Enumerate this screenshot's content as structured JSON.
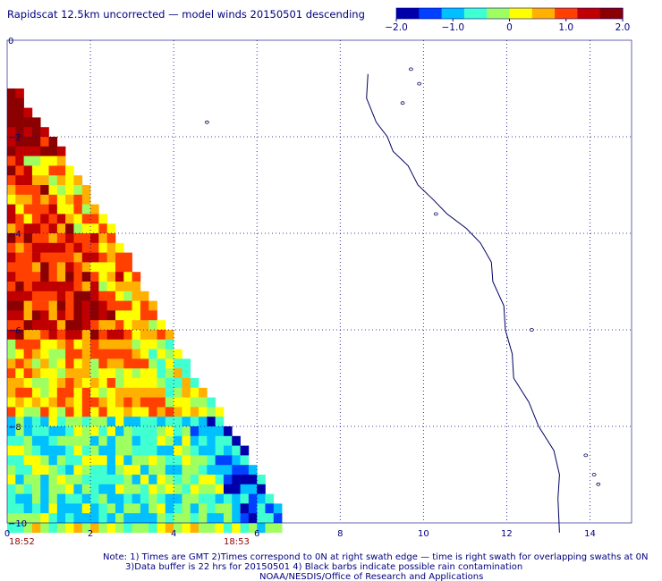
{
  "title": "Rapidscat 12.5km uncorrected — model winds 20150501 descending",
  "colorbar": {
    "min": -2.0,
    "max": 2.0,
    "tick_labels": [
      "−2.0",
      "−1.0",
      "0",
      "1.0",
      "2.0"
    ],
    "tick_values": [
      -2.0,
      -1.0,
      0,
      1.0,
      2.0
    ],
    "colors": [
      "#0000aa",
      "#0040ff",
      "#00c0ff",
      "#40ffd0",
      "#a0ff60",
      "#ffff00",
      "#ffb000",
      "#ff4000",
      "#c00000",
      "#8b0000"
    ]
  },
  "time_labels": [
    {
      "text": "18:52",
      "x": 0
    },
    {
      "text": "18:53",
      "x": 5
    }
  ],
  "notes": [
    "Note: 1) Times are GMT 2)Times correspond to 0N at right swath edge — time is right swath for overlapping swaths at 0N",
    "3)Data buffer is 22 hrs for 20150501 4) Black barbs indicate possible rain contamination",
    "NOAA/NESDIS/Office of Research and Applications"
  ],
  "chart_data": {
    "type": "heatmap",
    "title": "Rapidscat 12.5km uncorrected — model winds 20150501 descending",
    "xlim": [
      0,
      15
    ],
    "ylim": [
      -10,
      0
    ],
    "x_ticks": [
      0,
      2,
      4,
      6,
      8,
      10,
      12,
      14
    ],
    "x_tick_labels": [
      "0",
      "2",
      "4",
      "6",
      "8",
      "10",
      "12",
      "14"
    ],
    "y_ticks": [
      0,
      -2,
      -4,
      -6,
      -8,
      -10
    ],
    "y_tick_labels": [
      "0",
      "−2",
      "−4",
      "−6",
      "−8",
      "−10"
    ],
    "grid": true,
    "colorbar_range": [
      -2.0,
      2.0
    ],
    "cell_size": 0.2,
    "swath_edge": [
      [
        0.1,
        -1.0
      ],
      [
        0.7,
        -1.6
      ],
      [
        2.5,
        -4.0
      ],
      [
        4.2,
        -6.7
      ],
      [
        5.5,
        -8.3
      ],
      [
        6.6,
        -10.0
      ]
    ],
    "field_description": "wind speed difference (uncorrected minus model), m/s",
    "value_bands": [
      {
        "y_top": -1.0,
        "y_bottom": -2.4,
        "mean": 1.7
      },
      {
        "y_top": -2.4,
        "y_bottom": -4.0,
        "mean": 1.0
      },
      {
        "y_top": -4.0,
        "y_bottom": -6.2,
        "mean": 1.2
      },
      {
        "y_top": -6.2,
        "y_bottom": -7.8,
        "mean": 0.5
      },
      {
        "y_top": -7.8,
        "y_bottom": -10.0,
        "mean": -0.5
      }
    ],
    "coastline": [
      [
        8.7,
        -0.7
      ],
      [
        8.6,
        -1.2
      ],
      [
        8.9,
        -1.7
      ],
      [
        9.1,
        -2.0
      ],
      [
        9.3,
        -2.3
      ],
      [
        9.6,
        -2.6
      ],
      [
        9.9,
        -3.0
      ],
      [
        10.2,
        -3.3
      ],
      [
        10.6,
        -3.6
      ],
      [
        11.0,
        -3.9
      ],
      [
        11.4,
        -4.2
      ],
      [
        11.6,
        -4.6
      ],
      [
        11.7,
        -5.0
      ],
      [
        11.9,
        -5.5
      ],
      [
        12.0,
        -6.0
      ],
      [
        12.1,
        -6.5
      ],
      [
        12.2,
        -7.0
      ],
      [
        12.5,
        -7.5
      ],
      [
        12.8,
        -8.0
      ],
      [
        13.1,
        -8.5
      ],
      [
        13.3,
        -9.0
      ],
      [
        13.2,
        -9.5
      ],
      [
        13.3,
        -10.2
      ]
    ]
  }
}
